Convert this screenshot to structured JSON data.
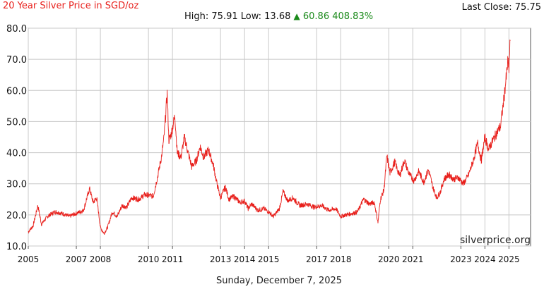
{
  "header": {
    "title": "20 Year Silver Price in SGD/oz",
    "last_close": "Last Close: 75.75",
    "high_low": "High: 75.91 Low: 13.68",
    "change_arrow": "▲",
    "change": "60.86 408.83%"
  },
  "watermark": "silverprice.org",
  "footer_date": "Sunday, December 7, 2025",
  "colors": {
    "line": "#e8201c",
    "up": "#1a8a1a",
    "grid": "#c8c8c8"
  },
  "chart_data": {
    "type": "line",
    "title": "20 Year Silver Price in SGD/oz",
    "xlabel": "",
    "ylabel": "",
    "ylim": [
      10,
      80
    ],
    "xlim": [
      2005.0,
      2025.9
    ],
    "grid": true,
    "y_ticks": [
      "10.0",
      "20.0",
      "30.0",
      "40.0",
      "50.0",
      "60.0",
      "70.0",
      "80.0"
    ],
    "x_ticks": [
      {
        "label": "2005",
        "x": 2005.0
      },
      {
        "label": "2007",
        "x": 2007.0
      },
      {
        "label": "2008",
        "x": 2008.0
      },
      {
        "label": "2010",
        "x": 2010.0
      },
      {
        "label": "2011",
        "x": 2011.0
      },
      {
        "label": "2013",
        "x": 2013.0
      },
      {
        "label": "2014",
        "x": 2014.0
      },
      {
        "label": "2015",
        "x": 2015.0
      },
      {
        "label": "2017",
        "x": 2017.0
      },
      {
        "label": "2018",
        "x": 2018.0
      },
      {
        "label": "2020",
        "x": 2020.0
      },
      {
        "label": "2021",
        "x": 2021.0
      },
      {
        "label": "2023",
        "x": 2023.0
      },
      {
        "label": "2024",
        "x": 2024.0
      },
      {
        "label": "2025",
        "x": 2025.0
      }
    ],
    "series": [
      {
        "values": [
          [
            2005.0,
            14.5
          ],
          [
            2005.2,
            16.5
          ],
          [
            2005.4,
            23.0
          ],
          [
            2005.55,
            17.0
          ],
          [
            2005.8,
            19.5
          ],
          [
            2006.1,
            21.0
          ],
          [
            2006.4,
            20.5
          ],
          [
            2006.7,
            19.5
          ],
          [
            2007.0,
            20.5
          ],
          [
            2007.3,
            21.5
          ],
          [
            2007.55,
            28.5
          ],
          [
            2007.7,
            24.0
          ],
          [
            2007.85,
            25.5
          ],
          [
            2008.0,
            16.0
          ],
          [
            2008.15,
            14.0
          ],
          [
            2008.3,
            16.0
          ],
          [
            2008.5,
            21.0
          ],
          [
            2008.7,
            19.5
          ],
          [
            2008.9,
            23.0
          ],
          [
            2009.1,
            22.5
          ],
          [
            2009.3,
            25.5
          ],
          [
            2009.6,
            25.0
          ],
          [
            2009.85,
            26.5
          ],
          [
            2010.2,
            26.0
          ],
          [
            2010.4,
            33.0
          ],
          [
            2010.55,
            39.0
          ],
          [
            2010.65,
            45.0
          ],
          [
            2010.78,
            59.0
          ],
          [
            2010.85,
            44.0
          ],
          [
            2010.95,
            46.0
          ],
          [
            2011.1,
            52.0
          ],
          [
            2011.2,
            40.0
          ],
          [
            2011.35,
            38.5
          ],
          [
            2011.5,
            45.0
          ],
          [
            2011.65,
            40.0
          ],
          [
            2011.8,
            35.5
          ],
          [
            2012.0,
            37.5
          ],
          [
            2012.15,
            42.0
          ],
          [
            2012.3,
            38.5
          ],
          [
            2012.5,
            41.0
          ],
          [
            2012.7,
            36.0
          ],
          [
            2012.85,
            30.0
          ],
          [
            2013.0,
            25.5
          ],
          [
            2013.2,
            29.0
          ],
          [
            2013.35,
            25.0
          ],
          [
            2013.55,
            26.0
          ],
          [
            2013.8,
            24.0
          ],
          [
            2014.0,
            24.5
          ],
          [
            2014.15,
            22.0
          ],
          [
            2014.3,
            23.5
          ],
          [
            2014.55,
            21.5
          ],
          [
            2014.8,
            22.0
          ],
          [
            2015.0,
            21.0
          ],
          [
            2015.2,
            19.5
          ],
          [
            2015.45,
            22.0
          ],
          [
            2015.6,
            27.5
          ],
          [
            2015.8,
            24.5
          ],
          [
            2016.0,
            25.5
          ],
          [
            2016.3,
            23.0
          ],
          [
            2016.6,
            23.5
          ],
          [
            2016.9,
            22.5
          ],
          [
            2017.2,
            23.0
          ],
          [
            2017.5,
            21.5
          ],
          [
            2017.8,
            22.0
          ],
          [
            2018.0,
            19.5
          ],
          [
            2018.2,
            20.0
          ],
          [
            2018.5,
            20.5
          ],
          [
            2018.7,
            21.0
          ],
          [
            2018.95,
            25.0
          ],
          [
            2019.2,
            23.5
          ],
          [
            2019.4,
            24.0
          ],
          [
            2019.55,
            17.5
          ],
          [
            2019.65,
            25.0
          ],
          [
            2019.8,
            28.0
          ],
          [
            2019.92,
            39.0
          ],
          [
            2020.05,
            33.5
          ],
          [
            2020.25,
            37.0
          ],
          [
            2020.45,
            32.5
          ],
          [
            2020.65,
            37.5
          ],
          [
            2020.85,
            33.0
          ],
          [
            2021.05,
            31.0
          ],
          [
            2021.25,
            34.0
          ],
          [
            2021.45,
            30.5
          ],
          [
            2021.65,
            34.5
          ],
          [
            2021.85,
            28.5
          ],
          [
            2022.0,
            25.5
          ],
          [
            2022.15,
            27.5
          ],
          [
            2022.3,
            31.5
          ],
          [
            2022.5,
            33.0
          ],
          [
            2022.7,
            31.5
          ],
          [
            2022.9,
            32.0
          ],
          [
            2023.1,
            30.0
          ],
          [
            2023.3,
            32.5
          ],
          [
            2023.5,
            37.0
          ],
          [
            2023.7,
            43.0
          ],
          [
            2023.85,
            37.5
          ],
          [
            2024.0,
            45.0
          ],
          [
            2024.15,
            41.0
          ],
          [
            2024.3,
            43.5
          ],
          [
            2024.5,
            46.5
          ],
          [
            2024.65,
            48.5
          ],
          [
            2024.8,
            58.0
          ],
          [
            2024.9,
            65.0
          ],
          [
            2024.95,
            69.0
          ],
          [
            2025.0,
            67.0
          ],
          [
            2025.05,
            75.91
          ]
        ]
      }
    ]
  }
}
